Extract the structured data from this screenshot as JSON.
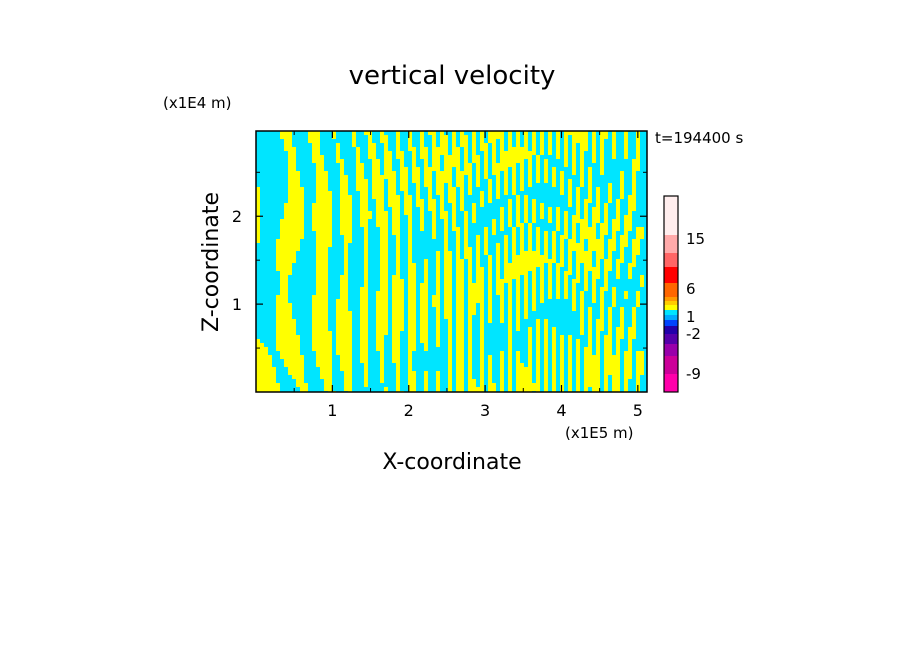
{
  "chart_data": {
    "type": "heatmap",
    "title": "vertical velocity",
    "xlabel": "X-coordinate",
    "ylabel": "Z-coordinate",
    "x_unit": "(x1E5 m)",
    "y_unit": "(x1E4 m)",
    "time_label": "t=194400 s",
    "xlim": [
      0,
      5.12
    ],
    "ylim": [
      0,
      2.97
    ],
    "x_ticks": [
      1,
      2,
      3,
      4,
      5
    ],
    "y_ticks": [
      1,
      2
    ],
    "x_tick_labels": [
      "1",
      "2",
      "3",
      "4",
      "5"
    ],
    "y_tick_labels": [
      "1",
      "2"
    ],
    "grid": false,
    "dominant_colors": {
      "positive": "#ffff00",
      "negative": "#00e5ff"
    },
    "colorbar": {
      "position": "right",
      "tick_labels": [
        "15",
        "6",
        "1",
        "-2",
        "-9"
      ],
      "tick_values": [
        15,
        6,
        1,
        -2,
        -9
      ],
      "bands": [
        {
          "color": "#ff00aa"
        },
        {
          "color": "#cc0099"
        },
        {
          "color": "#9900aa"
        },
        {
          "color": "#5500aa"
        },
        {
          "color": "#2200aa"
        },
        {
          "color": "#0044ff"
        },
        {
          "color": "#00aaff"
        },
        {
          "color": "#00e5ff"
        },
        {
          "color": "#ffff00"
        },
        {
          "color": "#ffcc00"
        },
        {
          "color": "#ff9900"
        },
        {
          "color": "#ff6600"
        },
        {
          "color": "#ff0000"
        },
        {
          "color": "#ff6666"
        },
        {
          "color": "#ffaaaa"
        },
        {
          "color": "#ffeeee"
        }
      ]
    }
  }
}
